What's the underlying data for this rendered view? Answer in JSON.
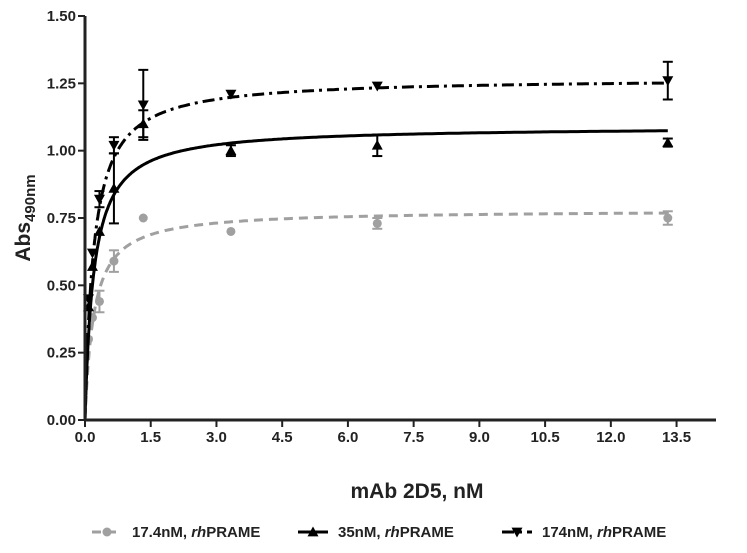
{
  "chart_data": {
    "type": "scatter",
    "title": "",
    "xlabel": "mAb 2D5,  nM",
    "ylabel_main": "Abs",
    "ylabel_sub": "490nm",
    "xlim": [
      0,
      14.4
    ],
    "ylim": [
      0,
      1.5
    ],
    "xticks": [
      0,
      1.5,
      3,
      4.5,
      6,
      7.5,
      9,
      10.5,
      12,
      13.5
    ],
    "xtick_labels": [
      "0.0",
      "1.5",
      "3.0",
      "4.5",
      "6.0",
      "7.5",
      "9.0",
      "10.5",
      "12.0",
      "13.5"
    ],
    "yticks": [
      0,
      0.25,
      0.5,
      0.75,
      1.0,
      1.25,
      1.5
    ],
    "ytick_labels": [
      "0.00",
      "0.25",
      "0.50",
      "0.75",
      "1.00",
      "1.25",
      "1.50"
    ],
    "grid": false,
    "legend_position": "bottom",
    "series": [
      {
        "name_prefix": "17.4nM, ",
        "name_italic": "rh",
        "name_suffix": "PRAME",
        "color": "#a0a0a0",
        "marker": "circle",
        "line_style": "dashed",
        "fit": {
          "bmax": 0.78,
          "kd": 0.2
        },
        "points": [
          {
            "x": 0.08,
            "y": 0.3,
            "err": 0.0
          },
          {
            "x": 0.17,
            "y": 0.38,
            "err": 0.0
          },
          {
            "x": 0.33,
            "y": 0.44,
            "err": 0.04
          },
          {
            "x": 0.66,
            "y": 0.59,
            "err": 0.04
          },
          {
            "x": 1.33,
            "y": 0.75,
            "err": 0.0
          },
          {
            "x": 3.33,
            "y": 0.7,
            "err": 0.0
          },
          {
            "x": 6.67,
            "y": 0.73,
            "err": 0.02
          },
          {
            "x": 13.3,
            "y": 0.75,
            "err": 0.025
          }
        ]
      },
      {
        "name_prefix": "35nM, ",
        "name_italic": "rh",
        "name_suffix": "PRAME",
        "color": "#000000",
        "marker": "triangle-up",
        "line_style": "solid",
        "fit": {
          "bmax": 1.09,
          "kd": 0.2
        },
        "points": [
          {
            "x": 0.08,
            "y": 0.42,
            "err": 0.0
          },
          {
            "x": 0.17,
            "y": 0.57,
            "err": 0.0
          },
          {
            "x": 0.33,
            "y": 0.7,
            "err": 0.0
          },
          {
            "x": 0.66,
            "y": 0.86,
            "err": 0.13
          },
          {
            "x": 1.33,
            "y": 1.1,
            "err": 0.05
          },
          {
            "x": 3.33,
            "y": 1.0,
            "err": 0.02
          },
          {
            "x": 6.67,
            "y": 1.02,
            "err": 0.04
          },
          {
            "x": 13.3,
            "y": 1.03,
            "err": 0.015
          }
        ]
      },
      {
        "name_prefix": "174nM, ",
        "name_italic": "rh",
        "name_suffix": "PRAME",
        "color": "#000000",
        "marker": "triangle-down",
        "line_style": "dashdot",
        "fit": {
          "bmax": 1.27,
          "kd": 0.2
        },
        "points": [
          {
            "x": 0.08,
            "y": 0.45,
            "err": 0.0
          },
          {
            "x": 0.17,
            "y": 0.62,
            "err": 0.0
          },
          {
            "x": 0.33,
            "y": 0.82,
            "err": 0.03
          },
          {
            "x": 0.66,
            "y": 1.02,
            "err": 0.03
          },
          {
            "x": 1.33,
            "y": 1.17,
            "err": 0.13
          },
          {
            "x": 3.33,
            "y": 1.21,
            "err": 0.0
          },
          {
            "x": 6.67,
            "y": 1.24,
            "err": 0.0
          },
          {
            "x": 13.3,
            "y": 1.26,
            "err": 0.07
          }
        ]
      }
    ]
  }
}
